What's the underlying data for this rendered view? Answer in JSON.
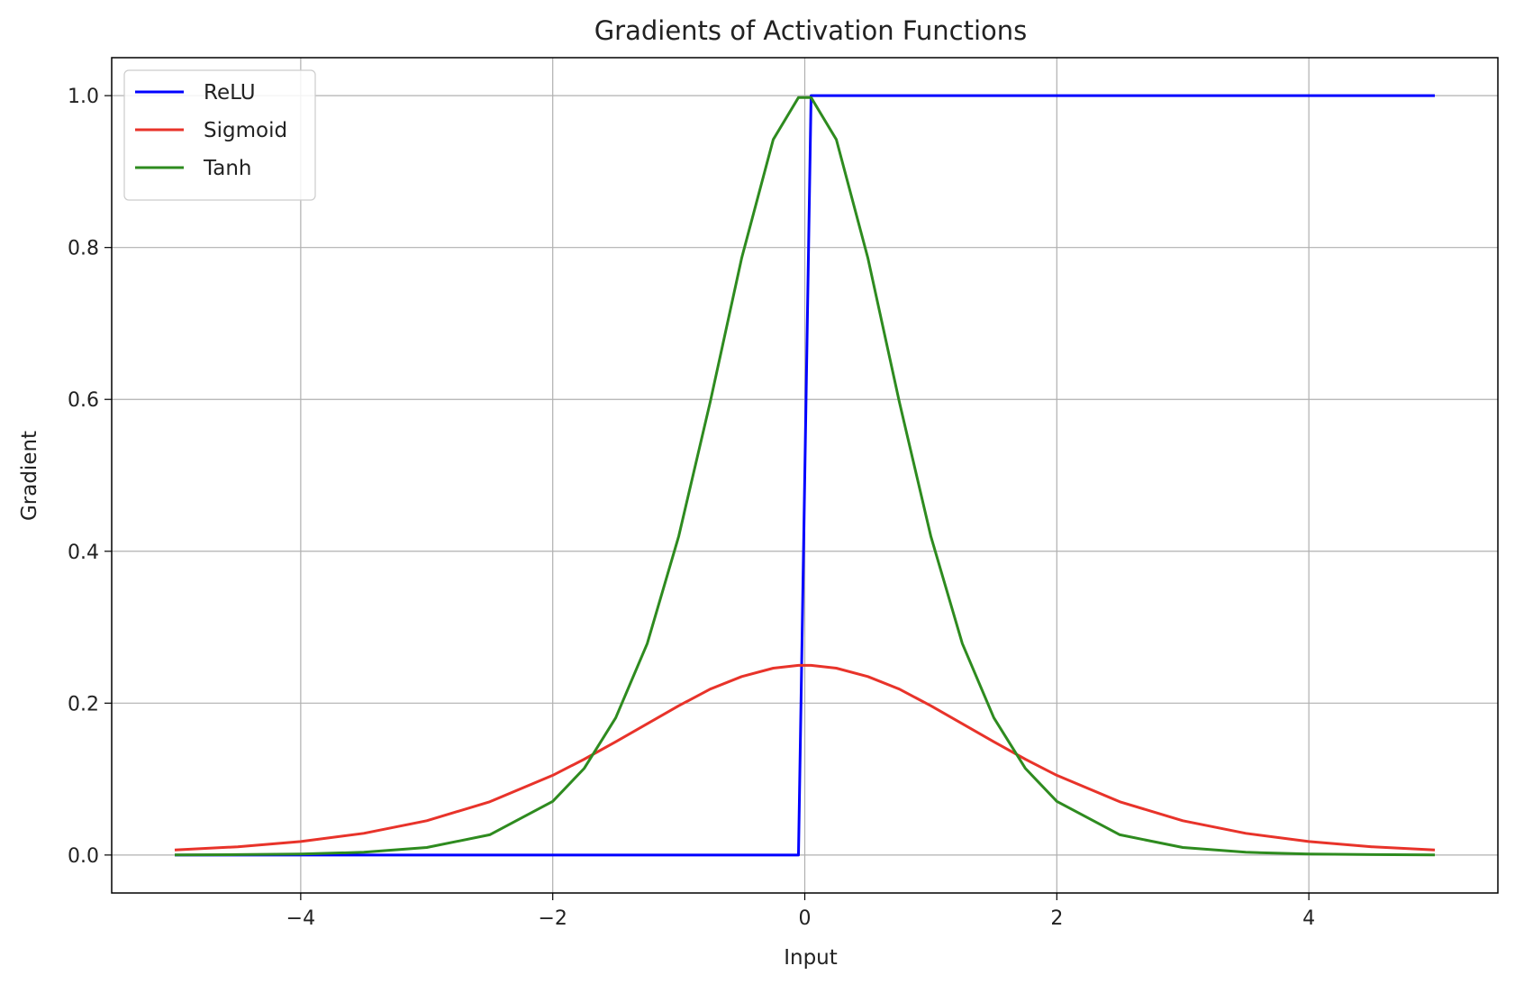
{
  "chart_data": {
    "type": "line",
    "title": "Gradients of Activation Functions",
    "xlabel": "Input",
    "ylabel": "Gradient",
    "xlim": [
      -5.5,
      5.5
    ],
    "ylim": [
      -0.05,
      1.05
    ],
    "xticks": [
      -4,
      -2,
      0,
      2,
      4
    ],
    "xtick_labels": [
      "−4",
      "−2",
      "0",
      "2",
      "4"
    ],
    "yticks": [
      0.0,
      0.2,
      0.4,
      0.6,
      0.8,
      1.0
    ],
    "ytick_labels": [
      "0.0",
      "0.2",
      "0.4",
      "0.6",
      "0.8",
      "1.0"
    ],
    "grid": true,
    "legend_position": "upper-left",
    "x": [
      -5.0,
      -4.5,
      -4.0,
      -3.5,
      -3.0,
      -2.5,
      -2.0,
      -1.75,
      -1.5,
      -1.25,
      -1.0,
      -0.75,
      -0.5,
      -0.25,
      -0.05,
      0.05,
      0.25,
      0.5,
      0.75,
      1.0,
      1.25,
      1.5,
      1.75,
      2.0,
      2.5,
      3.0,
      3.5,
      4.0,
      4.5,
      5.0
    ],
    "series": [
      {
        "name": "ReLU",
        "color": "#0000ff",
        "values": [
          0,
          0,
          0,
          0,
          0,
          0,
          0,
          0,
          0,
          0,
          0,
          0,
          0,
          0,
          0,
          1,
          1,
          1,
          1,
          1,
          1,
          1,
          1,
          1,
          1,
          1,
          1,
          1,
          1,
          1
        ]
      },
      {
        "name": "Sigmoid",
        "color": "#e8332a",
        "values": [
          0.0066,
          0.0109,
          0.0177,
          0.0285,
          0.0452,
          0.0701,
          0.105,
          0.1262,
          0.1491,
          0.1729,
          0.1966,
          0.2185,
          0.235,
          0.2461,
          0.2498,
          0.2498,
          0.2461,
          0.235,
          0.2185,
          0.1966,
          0.1729,
          0.1491,
          0.1262,
          0.105,
          0.0701,
          0.0452,
          0.0285,
          0.0177,
          0.0109,
          0.0066
        ]
      },
      {
        "name": "Tanh",
        "color": "#2e8b1f",
        "values": [
          0.0002,
          0.0005,
          0.0013,
          0.0036,
          0.0099,
          0.0266,
          0.0707,
          0.1142,
          0.1807,
          0.2784,
          0.42,
          0.5971,
          0.7864,
          0.9422,
          0.9975,
          0.9975,
          0.9422,
          0.7864,
          0.5971,
          0.42,
          0.2784,
          0.1807,
          0.1142,
          0.0707,
          0.0266,
          0.0099,
          0.0036,
          0.0013,
          0.0005,
          0.0002
        ]
      }
    ]
  }
}
